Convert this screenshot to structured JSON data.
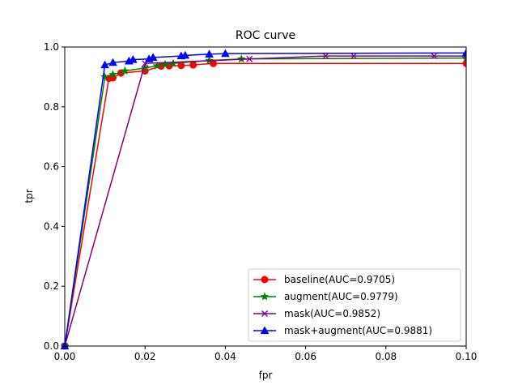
{
  "chart_data": {
    "type": "line",
    "title": "ROC curve",
    "xlabel": "fpr",
    "ylabel": "tpr",
    "xlim": [
      0.0,
      0.1
    ],
    "ylim": [
      0.0,
      1.0
    ],
    "xticks": [
      0.0,
      0.02,
      0.04,
      0.06,
      0.08,
      0.1
    ],
    "xtick_labels": [
      "0.00",
      "0.02",
      "0.04",
      "0.06",
      "0.08",
      "0.10"
    ],
    "yticks": [
      0.0,
      0.2,
      0.4,
      0.6,
      0.8,
      1.0
    ],
    "ytick_labels": [
      "0.0",
      "0.2",
      "0.4",
      "0.6",
      "0.8",
      "1.0"
    ],
    "grid": false,
    "legend_position": "lower-right",
    "series": [
      {
        "name": "baseline(AUC=0.9705)",
        "color": "#ff0000",
        "marker": "circle",
        "x": [
          0.0,
          0.011,
          0.012,
          0.014,
          0.02,
          0.024,
          0.026,
          0.029,
          0.032,
          0.037,
          0.1
        ],
        "y": [
          0.0,
          0.895,
          0.897,
          0.913,
          0.92,
          0.936,
          0.937,
          0.938,
          0.94,
          0.945,
          0.945
        ]
      },
      {
        "name": "augment(AUC=0.9779)",
        "color": "#008000",
        "marker": "star",
        "x": [
          0.0,
          0.01,
          0.012,
          0.015,
          0.02,
          0.023,
          0.025,
          0.027,
          0.036,
          0.044,
          0.1
        ],
        "y": [
          0.0,
          0.9,
          0.908,
          0.92,
          0.93,
          0.937,
          0.942,
          0.945,
          0.955,
          0.96,
          0.963
        ]
      },
      {
        "name": "mask(AUC=0.9852)",
        "color": "#800080",
        "marker": "x",
        "x": [
          0.0,
          0.02,
          0.046,
          0.065,
          0.072,
          0.092,
          0.1
        ],
        "y": [
          0.0,
          0.945,
          0.96,
          0.97,
          0.97,
          0.97,
          0.97
        ]
      },
      {
        "name": "mask+augment(AUC=0.9881)",
        "color": "#0000ff",
        "marker": "triangle",
        "x": [
          0.0,
          0.01,
          0.012,
          0.016,
          0.017,
          0.021,
          0.022,
          0.029,
          0.03,
          0.036,
          0.04,
          0.1
        ],
        "y": [
          0.0,
          0.94,
          0.948,
          0.953,
          0.958,
          0.96,
          0.965,
          0.97,
          0.972,
          0.976,
          0.978,
          0.98
        ]
      }
    ]
  }
}
